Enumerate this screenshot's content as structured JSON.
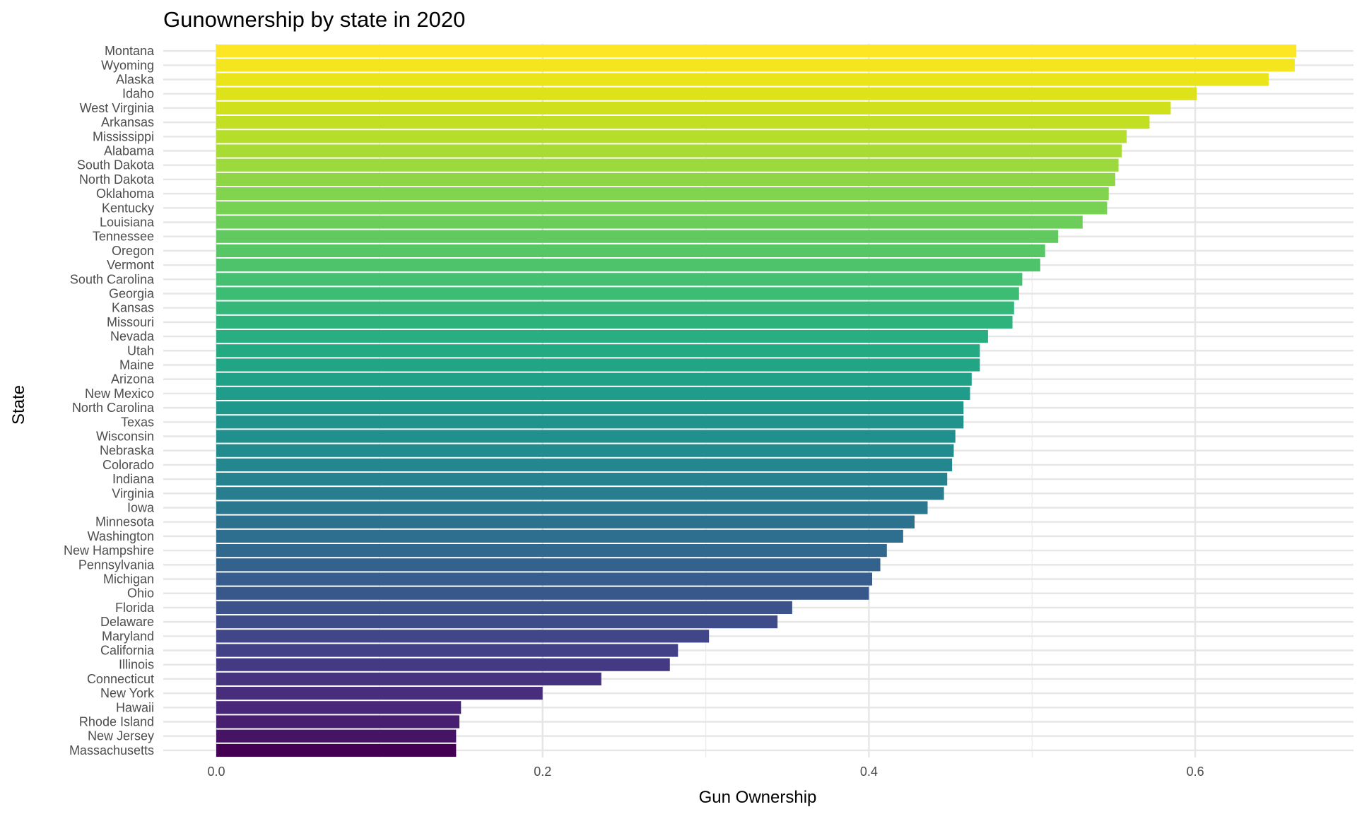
{
  "chart_data": {
    "type": "bar",
    "orientation": "horizontal",
    "title": "Gunownership by state in 2020",
    "xlabel": "Gun Ownership",
    "ylabel": "State",
    "xlim": [
      -0.0325,
      0.697
    ],
    "xticks": [
      0.0,
      0.2,
      0.4,
      0.6
    ],
    "xtick_labels": [
      "0.0",
      "0.2",
      "0.4",
      "0.6"
    ],
    "grid": true,
    "legend": "none",
    "color_scale": "viridis",
    "categories": [
      "Montana",
      "Wyoming",
      "Alaska",
      "Idaho",
      "West Virginia",
      "Arkansas",
      "Mississippi",
      "Alabama",
      "South Dakota",
      "North Dakota",
      "Oklahoma",
      "Kentucky",
      "Louisiana",
      "Tennessee",
      "Oregon",
      "Vermont",
      "South Carolina",
      "Georgia",
      "Kansas",
      "Missouri",
      "Nevada",
      "Utah",
      "Maine",
      "Arizona",
      "New Mexico",
      "North Carolina",
      "Texas",
      "Wisconsin",
      "Nebraska",
      "Colorado",
      "Indiana",
      "Virginia",
      "Iowa",
      "Minnesota",
      "Washington",
      "New Hampshire",
      "Pennsylvania",
      "Michigan",
      "Ohio",
      "Florida",
      "Delaware",
      "Maryland",
      "California",
      "Illinois",
      "Connecticut",
      "New York",
      "Hawaii",
      "Rhode Island",
      "New Jersey",
      "Massachusetts"
    ],
    "values": [
      0.662,
      0.661,
      0.645,
      0.601,
      0.585,
      0.572,
      0.558,
      0.555,
      0.553,
      0.551,
      0.547,
      0.546,
      0.531,
      0.516,
      0.508,
      0.505,
      0.494,
      0.492,
      0.489,
      0.488,
      0.473,
      0.468,
      0.468,
      0.463,
      0.462,
      0.458,
      0.458,
      0.453,
      0.452,
      0.451,
      0.448,
      0.446,
      0.436,
      0.428,
      0.421,
      0.411,
      0.407,
      0.402,
      0.4,
      0.353,
      0.344,
      0.302,
      0.283,
      0.278,
      0.236,
      0.2,
      0.15,
      0.149,
      0.147,
      0.147
    ],
    "colors": [
      "#fde725",
      "#f4e61e",
      "#e9e51a",
      "#dde318",
      "#d0e11c",
      "#c2df23",
      "#b5de2b",
      "#a8db34",
      "#9bd93c",
      "#8ed645",
      "#82d34d",
      "#77d153",
      "#6ccd5a",
      "#61c960",
      "#57c665",
      "#4ec36b",
      "#45bf70",
      "#3dbc74",
      "#35b779",
      "#2eb37c",
      "#28ae80",
      "#24aa83",
      "#21a585",
      "#1fa187",
      "#1f9d8a",
      "#1f988b",
      "#20938c",
      "#218f8d",
      "#228b8d",
      "#24868e",
      "#26828e",
      "#287d8e",
      "#2a788e",
      "#2c728e",
      "#2e6e8e",
      "#31688e",
      "#33638d",
      "#365d8d",
      "#38588c",
      "#3b528b",
      "#3e4c8a",
      "#404688",
      "#424086",
      "#443a83",
      "#46337f",
      "#472d7b",
      "#48267a",
      "#481f70",
      "#471365",
      "#440154"
    ]
  }
}
